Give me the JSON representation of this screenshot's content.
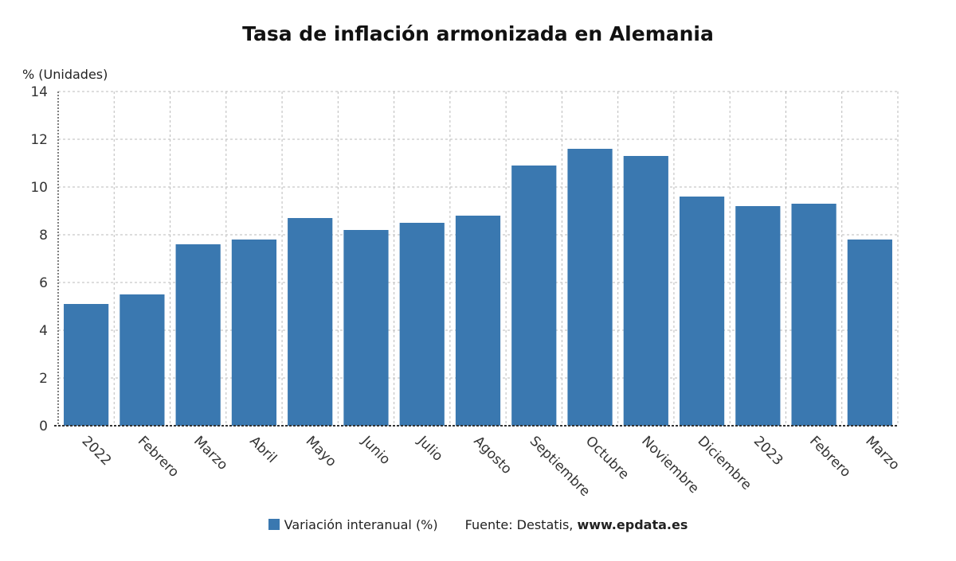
{
  "chart_data": {
    "type": "bar",
    "title": "Tasa de inflación armonizada en Alemania",
    "ylabel": "% (Unidades)",
    "categories": [
      "2022",
      "Febrero",
      "Marzo",
      "Abril",
      "Mayo",
      "Junio",
      "Julio",
      "Agosto",
      "Septiembre",
      "Octubre",
      "Noviembre",
      "Diciembre",
      "2023",
      "Febrero",
      "Marzo"
    ],
    "series": [
      {
        "name": "Variación interanual (%)",
        "values": [
          5.1,
          5.5,
          7.6,
          7.8,
          8.7,
          8.2,
          8.5,
          8.8,
          10.9,
          11.6,
          11.3,
          9.6,
          9.2,
          9.3,
          7.8
        ]
      }
    ],
    "ylim": [
      0,
      14
    ],
    "yticks": [
      0,
      2,
      4,
      6,
      8,
      10,
      12,
      14
    ],
    "grid": true,
    "legend_position": "bottom-center",
    "bar_color": "#3a78b0"
  },
  "legend": {
    "series_label": "Variación interanual (%)",
    "source_prefix": "Fuente: Destatis,",
    "source_site": "www.epdata.es"
  }
}
